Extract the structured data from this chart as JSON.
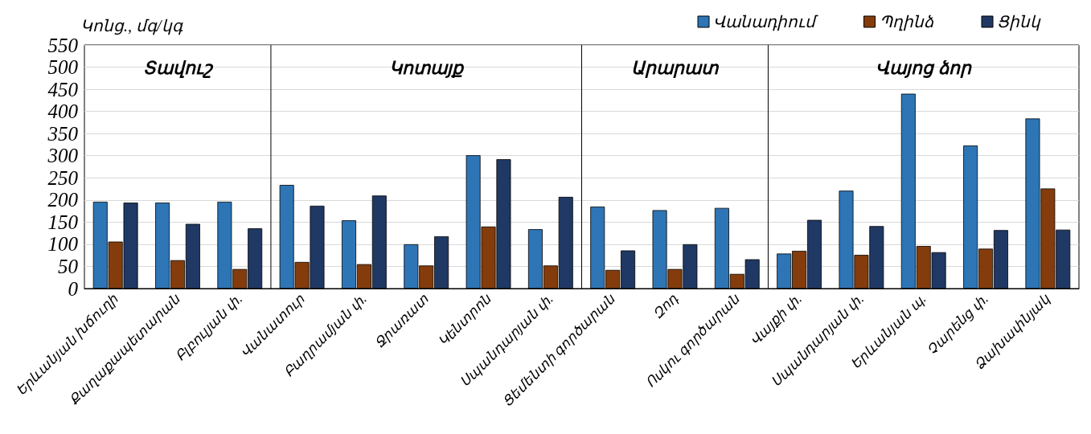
{
  "chart_data": {
    "type": "bar",
    "ylabel": "Կոնց., մգ/կգ",
    "categories": [
      "Երևանյան խճուղի",
      "Քաղաքապետարան",
      "Բլբուլյան փ.",
      "Վանատուր",
      "Բաղրամյան փ.",
      "Ջրառատ",
      "Կենտրոն",
      "Սպանդարյան փ.",
      "Ցեմենտի գործարան",
      "Զոդ",
      "Ոսկու գործարան",
      "Վայքի փ.",
      "Սպանդարյան փ.",
      "Երևանյան պ.",
      "Չարենց փ.",
      "Ձախափնյակ"
    ],
    "series": [
      {
        "name": "Վանադիում",
        "color": "#2e75b6",
        "values": [
          196,
          194,
          196,
          234,
          154,
          100,
          301,
          134,
          185,
          177,
          182,
          79,
          221,
          440,
          323,
          384
        ]
      },
      {
        "name": "Պղինձ",
        "color": "#843c0c",
        "values": [
          106,
          64,
          44,
          60,
          55,
          52,
          140,
          52,
          42,
          44,
          33,
          85,
          76,
          96,
          90,
          226
        ]
      },
      {
        "name": "Ցինկ",
        "color": "#203864",
        "values": [
          194,
          146,
          136,
          187,
          210,
          118,
          292,
          207,
          86,
          100,
          66,
          155,
          141,
          82,
          132,
          133
        ]
      }
    ],
    "ylim": [
      0,
      550
    ],
    "yticks": [
      0,
      50,
      100,
      150,
      200,
      250,
      300,
      350,
      400,
      450,
      500,
      550
    ],
    "grid": "y",
    "legend": "top right",
    "annotations": [
      "Տավուշ",
      "Կոտայք",
      "Արարատ",
      "Վայոց ձոր"
    ]
  }
}
